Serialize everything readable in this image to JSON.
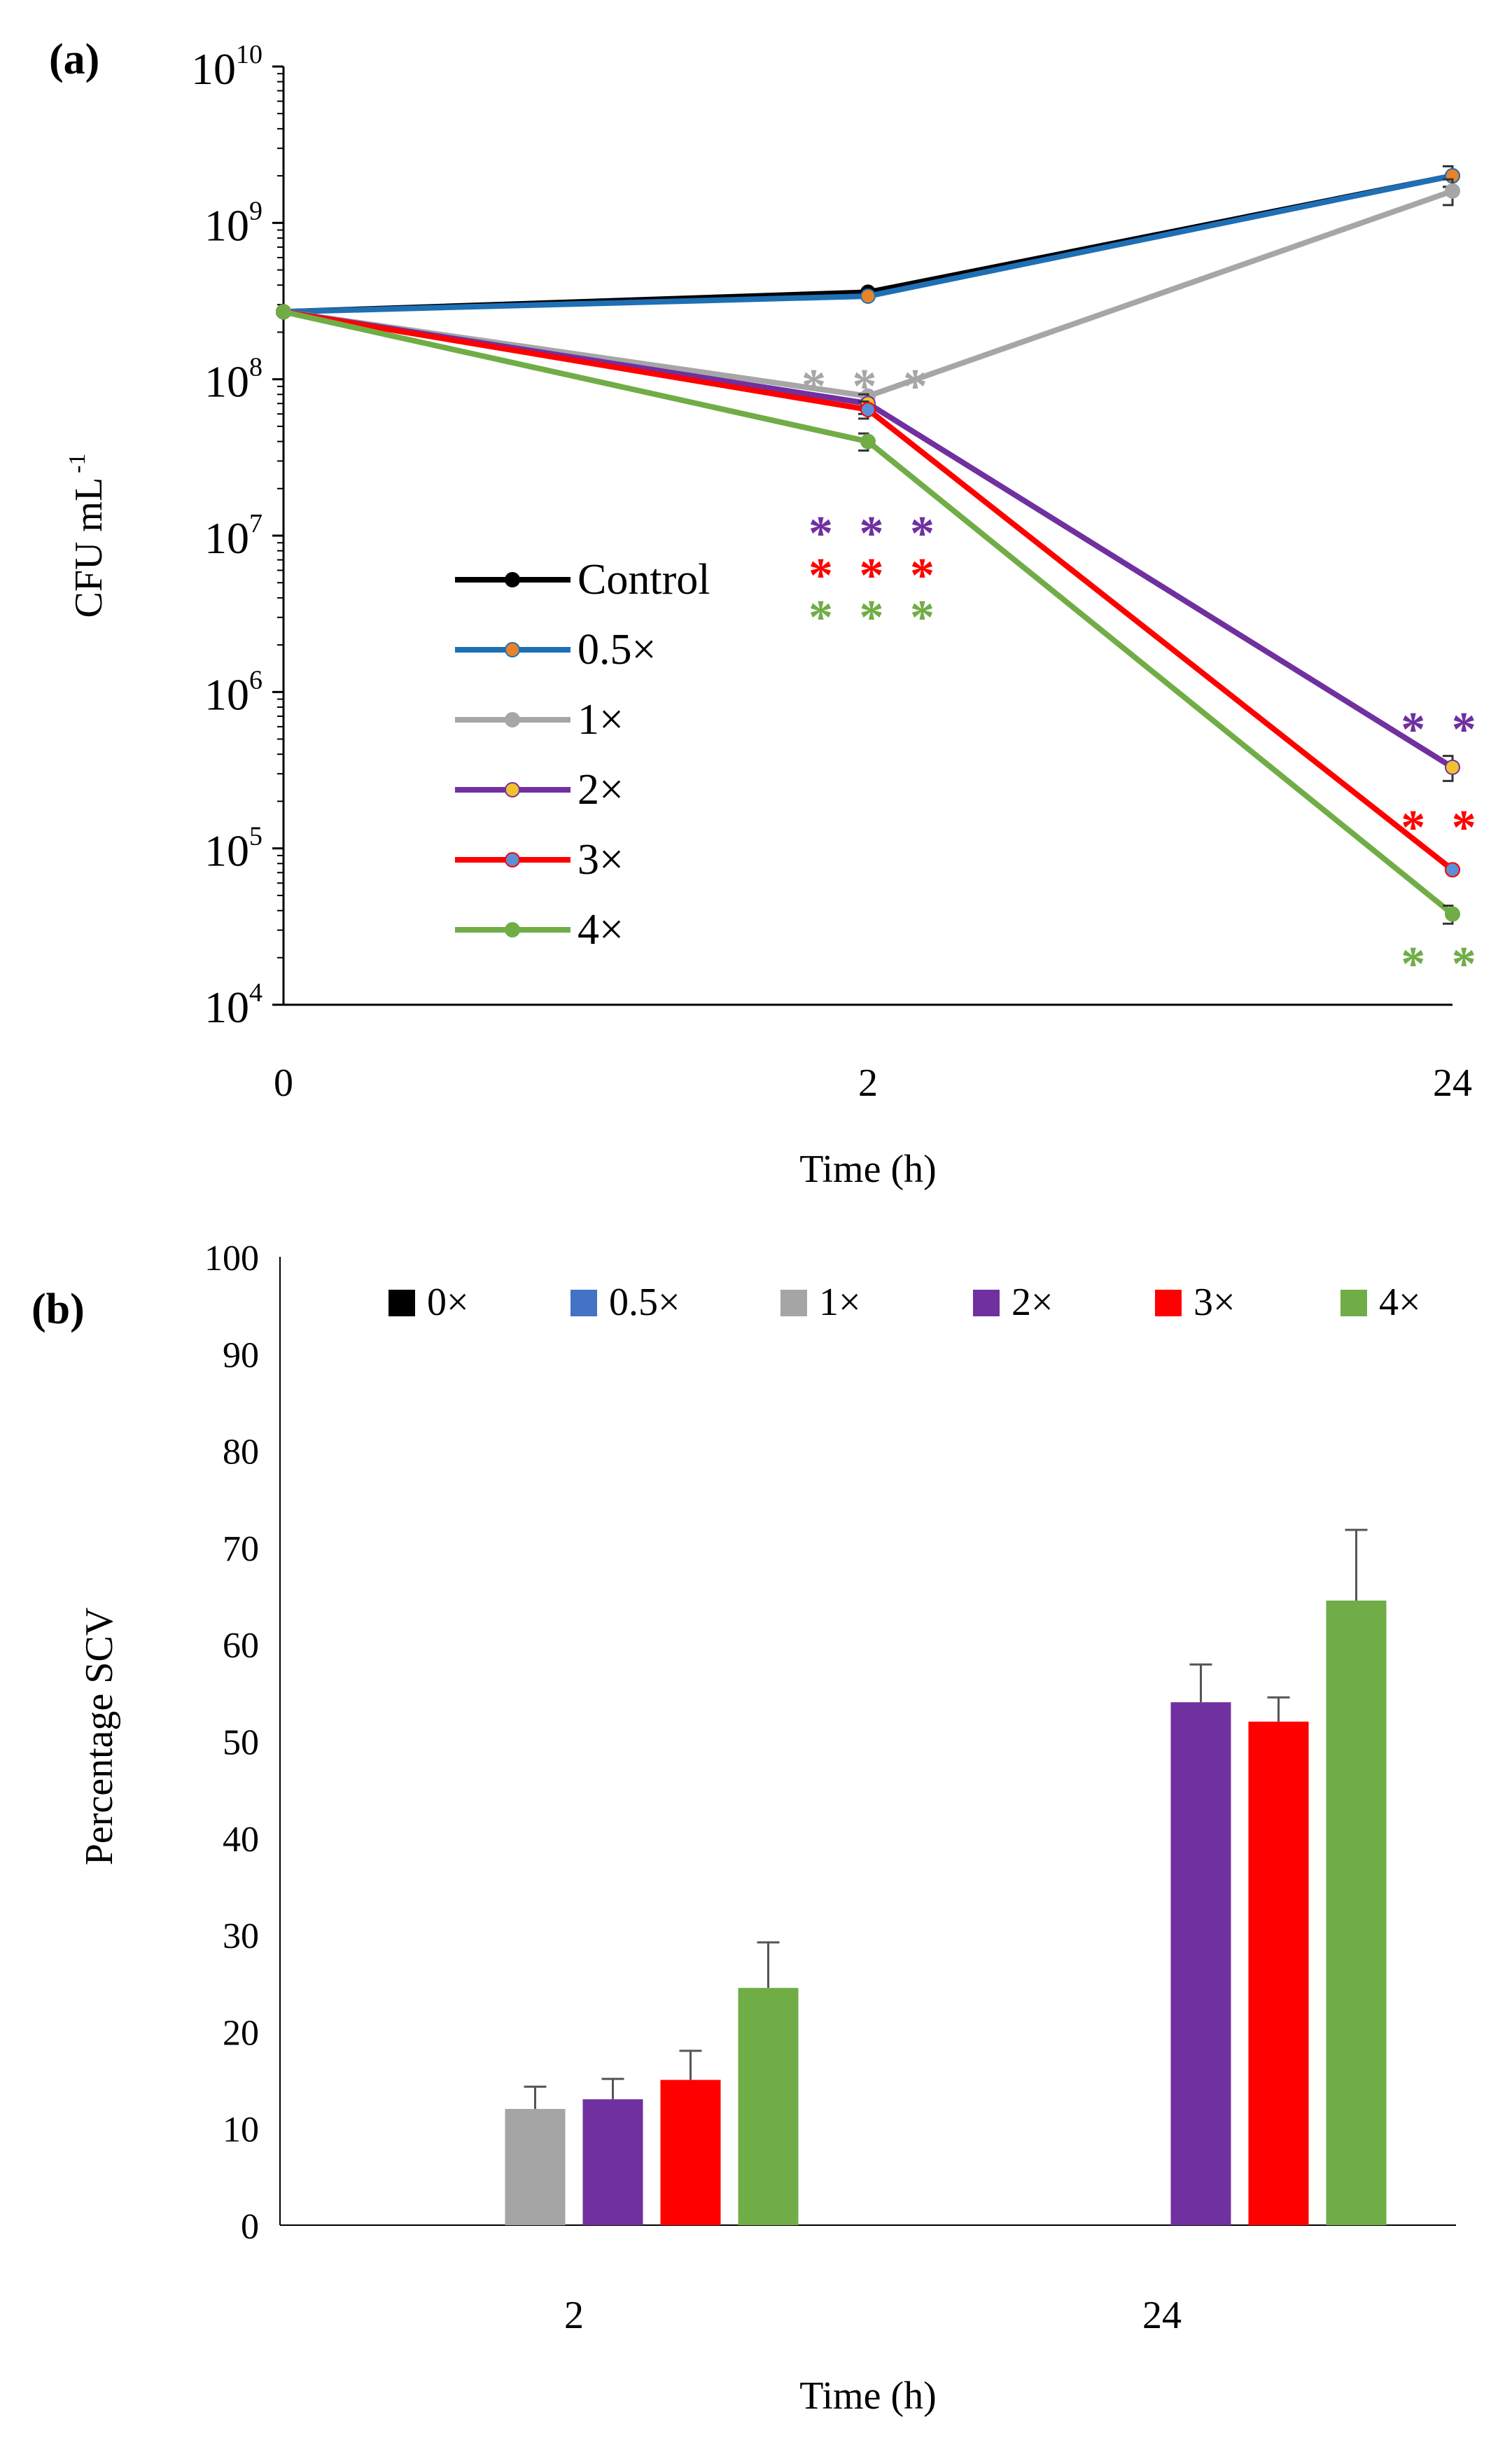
{
  "chart_data": [
    {
      "panel_label": "(a)",
      "type": "line",
      "yscale": "log",
      "ylabel": "CFU mL",
      "ylabel_exp": "-1",
      "xlabel": "Time (h)",
      "categories": [
        "0",
        "2",
        "24"
      ],
      "ylim": [
        10000,
        10000000000
      ],
      "y_ticks": [
        {
          "base": "10",
          "exp": "10"
        },
        {
          "base": "10",
          "exp": "9"
        },
        {
          "base": "10",
          "exp": "8"
        },
        {
          "base": "10",
          "exp": "7"
        },
        {
          "base": "10",
          "exp": "6"
        },
        {
          "base": "10",
          "exp": "5"
        },
        {
          "base": "10",
          "exp": "4"
        }
      ],
      "series": [
        {
          "name": "Control",
          "color": "#000000",
          "marker": "#000000",
          "values": [
            270000000,
            360000000,
            2000000000
          ],
          "err": [
            0,
            0,
            300000000
          ]
        },
        {
          "name": "0.5×",
          "color": "#1f6fb5",
          "marker": "#e8832a",
          "values": [
            270000000,
            340000000,
            2000000000
          ],
          "err": [
            0,
            0,
            300000000
          ]
        },
        {
          "name": "1×",
          "color": "#a6a6a6",
          "marker": "#a6a6a6",
          "values": [
            270000000,
            78000000,
            1600000000
          ],
          "err": [
            0,
            0,
            300000000
          ]
        },
        {
          "name": "2×",
          "color": "#7030a0",
          "marker": "#f2c12e",
          "values": [
            270000000,
            70000000,
            330000
          ],
          "err": [
            0,
            10000000,
            60000
          ]
        },
        {
          "name": "3×",
          "color": "#ff0000",
          "marker": "#5b8fd6",
          "values": [
            270000000,
            64000000,
            73000
          ],
          "err": [
            0,
            8000000,
            0
          ]
        },
        {
          "name": "4×",
          "color": "#70ad47",
          "marker": "#70ad47",
          "values": [
            270000000,
            40000000,
            38000
          ],
          "err": [
            0,
            5000000,
            5000
          ]
        }
      ],
      "annotations": [
        {
          "text": "***",
          "color": "#a6a6a6",
          "near": "1× at 2 h"
        },
        {
          "text": "***",
          "color": "#7030a0",
          "near": "2× at 2 h"
        },
        {
          "text": "***",
          "color": "#ff0000",
          "near": "3× at 2 h"
        },
        {
          "text": "***",
          "color": "#70ad47",
          "near": "4× at 2 h"
        },
        {
          "text": "**",
          "color": "#7030a0",
          "near": "2× at 24 h"
        },
        {
          "text": "**",
          "color": "#ff0000",
          "near": "3× at 24 h"
        },
        {
          "text": "**",
          "color": "#70ad47",
          "near": "4× at 24 h"
        }
      ],
      "legend_position": "left-middle"
    },
    {
      "panel_label": "(b)",
      "type": "bar",
      "ylabel": "Percentage SCV",
      "xlabel": "Time (h)",
      "categories": [
        "2",
        "24"
      ],
      "ylim": [
        0,
        100
      ],
      "y_ticks": [
        "0",
        "10",
        "20",
        "30",
        "40",
        "50",
        "60",
        "70",
        "80",
        "90",
        "100"
      ],
      "series": [
        {
          "name": "0×",
          "color": "#000000",
          "values": [
            0,
            0
          ],
          "err": [
            0,
            0
          ]
        },
        {
          "name": "0.5×",
          "color": "#4472c4",
          "values": [
            0,
            0
          ],
          "err": [
            0,
            0
          ]
        },
        {
          "name": "1×",
          "color": "#a5a5a5",
          "values": [
            12,
            0
          ],
          "err": [
            2.3,
            0
          ]
        },
        {
          "name": "2×",
          "color": "#7030a0",
          "values": [
            13,
            54
          ],
          "err": [
            2.1,
            3.9
          ]
        },
        {
          "name": "3×",
          "color": "#ff0000",
          "values": [
            15,
            52
          ],
          "err": [
            3.0,
            2.5
          ]
        },
        {
          "name": "4×",
          "color": "#70ad47",
          "values": [
            24.5,
            64.5
          ],
          "err": [
            4.7,
            7.3
          ]
        }
      ],
      "legend_position": "top"
    }
  ]
}
